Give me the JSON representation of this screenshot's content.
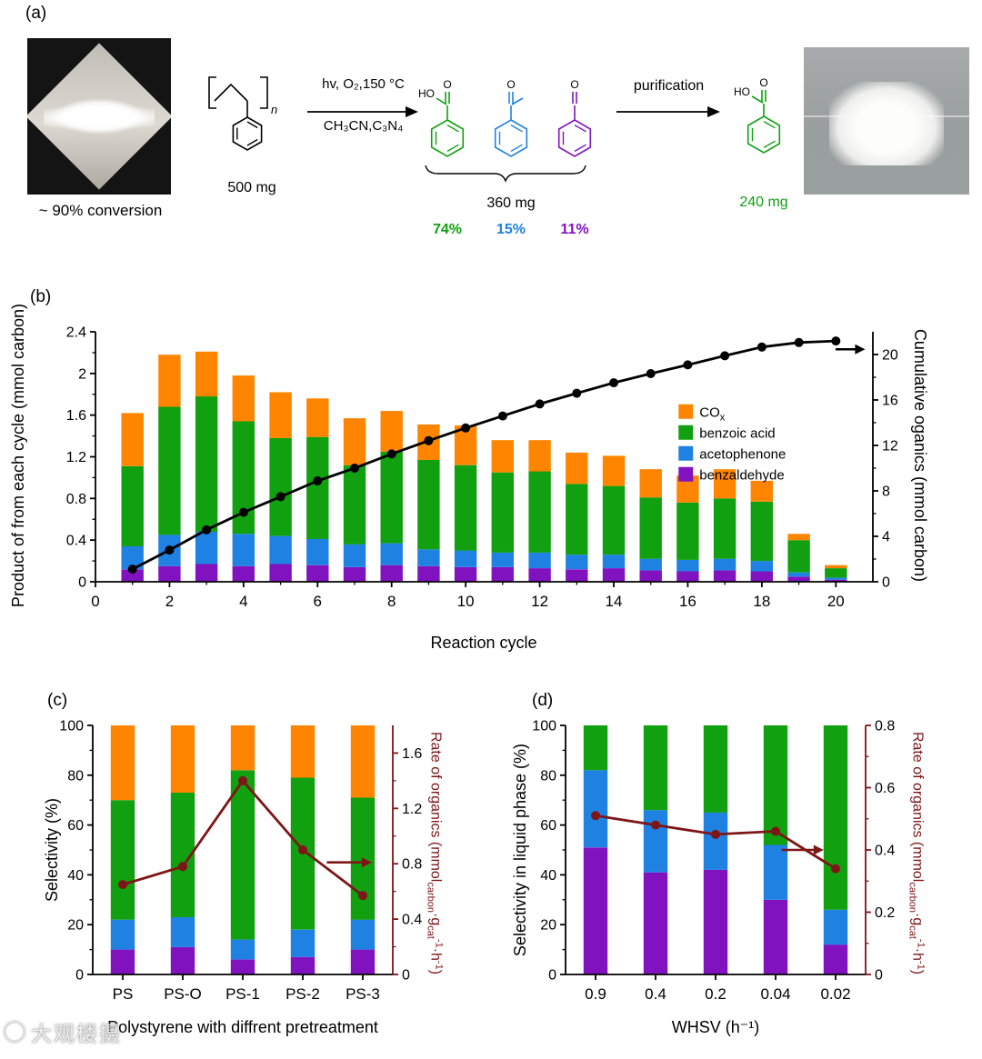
{
  "colors": {
    "orange": "#FF8500",
    "green": "#10A010",
    "blue": "#1F82E2",
    "purple": "#8012C0",
    "dark_red": "#7E1517",
    "black": "#000000"
  },
  "watermark": {
    "text": "大观楼摄"
  },
  "panel_a": {
    "label": "(a)",
    "left_photo_caption": "~ 90% conversion",
    "ps_mass": "500 mg",
    "conditions_top": "hv, O₂,150 °C",
    "conditions_bottom": "CH₃CN,C₃N₄",
    "products_mass": "360 mg",
    "purification": "purification",
    "final_mass": "240 mg",
    "percents": {
      "benzoic": "74%",
      "acetophenone": "15%",
      "benzaldehyde": "11%"
    },
    "atoms": {
      "ho": "HO",
      "o": "O",
      "n": "n"
    }
  },
  "panel_b": {
    "label": "(b)",
    "ylabel_left": "Product of from each cycle (mmol carbon)",
    "ylabel_right": "Cumulative oganics (mmol carbon)",
    "xlabel": "Reaction cycle"
  },
  "panel_c": {
    "label": "(c)",
    "ylabel_left": "Selectivity (%)",
    "xlabel": "Polystyrene with diffrent pretreatment",
    "rate_label": {
      "pre": "Rate of organics (mmol",
      "sub1": "carbon",
      "mid1": "·g",
      "sub2": "cat",
      "sup1": "-1",
      "mid2": "·h",
      "sup2": "-1",
      "post": ")"
    }
  },
  "panel_d": {
    "label": "(d)",
    "ylabel_left": "Selectivity in liquid phase (%)",
    "xlabel": "WHSV (h⁻¹)",
    "rate_label": {
      "pre": "Rate of organics (mmol",
      "sub1": "carbon",
      "mid1": "·g",
      "sub2": "cat",
      "sup1": "-1",
      "mid2": "·h",
      "sup2": "-1",
      "post": ")"
    }
  },
  "chart_data": [
    {
      "id": "panel-b-reaction-cycles",
      "type": "stacked-bar+line",
      "xlabel": "Reaction cycle",
      "ylabel_left": "Product of from each cycle (mmol carbon)",
      "ylabel_right": "Cumulative oganics (mmol carbon)",
      "x": {
        "mode": "numeric",
        "min": 0,
        "max": 21,
        "ticks": [
          {
            "v": 0,
            "l": "0"
          },
          {
            "v": 2,
            "l": "2"
          },
          {
            "v": 4,
            "l": "4"
          },
          {
            "v": 6,
            "l": "6"
          },
          {
            "v": 8,
            "l": "8"
          },
          {
            "v": 10,
            "l": "10"
          },
          {
            "v": 12,
            "l": "12"
          },
          {
            "v": 14,
            "l": "14"
          },
          {
            "v": 16,
            "l": "16"
          },
          {
            "v": 18,
            "l": "18"
          },
          {
            "v": 20,
            "l": "20"
          }
        ]
      },
      "categories": [
        1,
        2,
        3,
        4,
        5,
        6,
        7,
        8,
        9,
        10,
        11,
        12,
        13,
        14,
        15,
        16,
        17,
        18,
        19,
        20
      ],
      "bar_width": 0.6,
      "left_axis": {
        "min": 0,
        "max": 2.4,
        "ticks": [
          {
            "v": 0,
            "l": "0"
          },
          {
            "v": 0.4,
            "l": "0.4"
          },
          {
            "v": 0.8,
            "l": "0.8"
          },
          {
            "v": 1.2,
            "l": "1.2"
          },
          {
            "v": 1.6,
            "l": "1.6"
          },
          {
            "v": 2,
            "l": "2"
          },
          {
            "v": 2.4,
            "l": "2.4"
          }
        ]
      },
      "right_axis": {
        "min": 0,
        "max": 22,
        "color": "#000000",
        "spine": "#000000",
        "ticks": [
          {
            "v": 0,
            "l": "0"
          },
          {
            "v": 4,
            "l": "4"
          },
          {
            "v": 8,
            "l": "8"
          },
          {
            "v": 12,
            "l": "12"
          },
          {
            "v": 16,
            "l": "16"
          },
          {
            "v": 20,
            "l": "20"
          }
        ]
      },
      "series": [
        {
          "name": "benzaldehyde",
          "color": "#8012C0",
          "values": [
            0.12,
            0.15,
            0.17,
            0.15,
            0.17,
            0.16,
            0.14,
            0.16,
            0.15,
            0.14,
            0.14,
            0.13,
            0.12,
            0.13,
            0.11,
            0.1,
            0.11,
            0.1,
            0.05,
            0.02
          ]
        },
        {
          "name": "acetophenone",
          "color": "#1F82E2",
          "values": [
            0.22,
            0.3,
            0.31,
            0.31,
            0.27,
            0.25,
            0.22,
            0.21,
            0.16,
            0.16,
            0.14,
            0.15,
            0.14,
            0.13,
            0.11,
            0.11,
            0.11,
            0.1,
            0.04,
            0.02
          ]
        },
        {
          "name": "benzoic acid",
          "color": "#10A010",
          "values": [
            0.77,
            1.23,
            1.3,
            1.08,
            0.94,
            0.98,
            0.76,
            0.88,
            0.86,
            0.82,
            0.77,
            0.78,
            0.68,
            0.66,
            0.59,
            0.55,
            0.58,
            0.57,
            0.31,
            0.09
          ]
        },
        {
          "name": "COx",
          "color": "#FF8500",
          "values": [
            0.51,
            0.5,
            0.43,
            0.44,
            0.44,
            0.37,
            0.45,
            0.39,
            0.34,
            0.38,
            0.31,
            0.3,
            0.3,
            0.29,
            0.27,
            0.26,
            0.28,
            0.2,
            0.06,
            0.03
          ]
        }
      ],
      "line": {
        "name": "cumulative organics",
        "axis": "right",
        "color": "#000000",
        "values": [
          1.11,
          2.79,
          4.57,
          6.11,
          7.49,
          8.88,
          10.0,
          11.25,
          12.42,
          13.54,
          14.59,
          15.65,
          16.59,
          17.51,
          18.32,
          19.09,
          19.89,
          20.66,
          21.06,
          21.19
        ]
      },
      "legend": {
        "fx": 0.75,
        "fy": 0.29,
        "items": [
          {
            "label": "CO",
            "sub": "x",
            "color": "#FF8500"
          },
          {
            "label": "benzoic acid",
            "color": "#10A010"
          },
          {
            "label": "acetophenone",
            "color": "#1F82E2"
          },
          {
            "label": "benzaldehyde",
            "color": "#8012C0"
          }
        ]
      },
      "arrow": {
        "fx1": 0.952,
        "fx2": 0.99,
        "fy": 0.07,
        "color": "#000000"
      }
    },
    {
      "id": "panel-c-pretreatment",
      "type": "stacked-bar+line",
      "xlabel": "Polystyrene with diffrent pretreatment",
      "ylabel_left": "Selectivity (%)",
      "ylabel_right": "Rate of organics (mmol_carbon·g_cat^-1·h^-1)",
      "x": {
        "mode": "categorical",
        "labels": [
          "PS",
          "PS-O",
          "PS-1",
          "PS-2",
          "PS-3"
        ]
      },
      "bar_width": 0.4,
      "left_axis": {
        "min": 0,
        "max": 100,
        "ticks": [
          {
            "v": 0,
            "l": "0"
          },
          {
            "v": 20,
            "l": "20"
          },
          {
            "v": 40,
            "l": "40"
          },
          {
            "v": 60,
            "l": "60"
          },
          {
            "v": 80,
            "l": "80"
          },
          {
            "v": 100,
            "l": "100"
          }
        ]
      },
      "right_axis": {
        "min": 0,
        "max": 1.8,
        "color": "#7E1517",
        "spine": "#7E1517",
        "ticks": [
          {
            "v": 0,
            "l": "0"
          },
          {
            "v": 0.4,
            "l": "0.4"
          },
          {
            "v": 0.8,
            "l": "0.8"
          },
          {
            "v": 1.2,
            "l": "1.2"
          },
          {
            "v": 1.6,
            "l": "1.6"
          }
        ]
      },
      "series": [
        {
          "name": "benzaldehyde",
          "color": "#8012C0",
          "values": [
            10,
            11,
            6,
            7,
            10
          ]
        },
        {
          "name": "acetophenone",
          "color": "#1F82E2",
          "values": [
            12,
            12,
            8,
            11,
            12
          ]
        },
        {
          "name": "benzoic acid",
          "color": "#10A010",
          "values": [
            48,
            50,
            68,
            61,
            49
          ]
        },
        {
          "name": "COx",
          "color": "#FF8500",
          "values": [
            30,
            27,
            18,
            21,
            29
          ]
        }
      ],
      "line": {
        "name": "rate of organics",
        "axis": "right",
        "color": "#7E1517",
        "values": [
          0.65,
          0.78,
          1.4,
          0.9,
          0.57
        ]
      },
      "arrow": {
        "fx1": 0.78,
        "fx2": 0.93,
        "fy": 0.55,
        "color": "#7E1517"
      }
    },
    {
      "id": "panel-d-whsv",
      "type": "stacked-bar+line",
      "xlabel": "WHSV (h⁻¹)",
      "ylabel_left": "Selectivity in liquid phase (%)",
      "ylabel_right": "Rate of organics (mmol_carbon·g_cat^-1·h^-1)",
      "x": {
        "mode": "categorical",
        "labels": [
          "0.9",
          "0.4",
          "0.2",
          "0.04",
          "0.02"
        ]
      },
      "bar_width": 0.4,
      "left_axis": {
        "min": 0,
        "max": 100,
        "ticks": [
          {
            "v": 0,
            "l": "0"
          },
          {
            "v": 20,
            "l": "20"
          },
          {
            "v": 40,
            "l": "40"
          },
          {
            "v": 60,
            "l": "60"
          },
          {
            "v": 80,
            "l": "80"
          },
          {
            "v": 100,
            "l": "100"
          }
        ]
      },
      "right_axis": {
        "min": 0,
        "max": 0.8,
        "color": "#7E1517",
        "spine": "#7E1517",
        "ticks": [
          {
            "v": 0,
            "l": "0"
          },
          {
            "v": 0.2,
            "l": "0.2"
          },
          {
            "v": 0.4,
            "l": "0.4"
          },
          {
            "v": 0.6,
            "l": "0.6"
          },
          {
            "v": 0.8,
            "l": "0.8"
          }
        ]
      },
      "series": [
        {
          "name": "benzaldehyde",
          "color": "#8012C0",
          "values": [
            51,
            41,
            42,
            30,
            12
          ]
        },
        {
          "name": "acetophenone",
          "color": "#1F82E2",
          "values": [
            31,
            25,
            23,
            22,
            14
          ]
        },
        {
          "name": "benzoic acid",
          "color": "#10A010",
          "values": [
            18,
            34,
            35,
            48,
            74
          ]
        }
      ],
      "line": {
        "name": "rate of organics",
        "axis": "right",
        "color": "#7E1517",
        "values": [
          0.51,
          0.48,
          0.45,
          0.46,
          0.34
        ]
      },
      "arrow": {
        "fx1": 0.72,
        "fx2": 0.86,
        "fy": 0.5,
        "color": "#7E1517"
      }
    }
  ]
}
